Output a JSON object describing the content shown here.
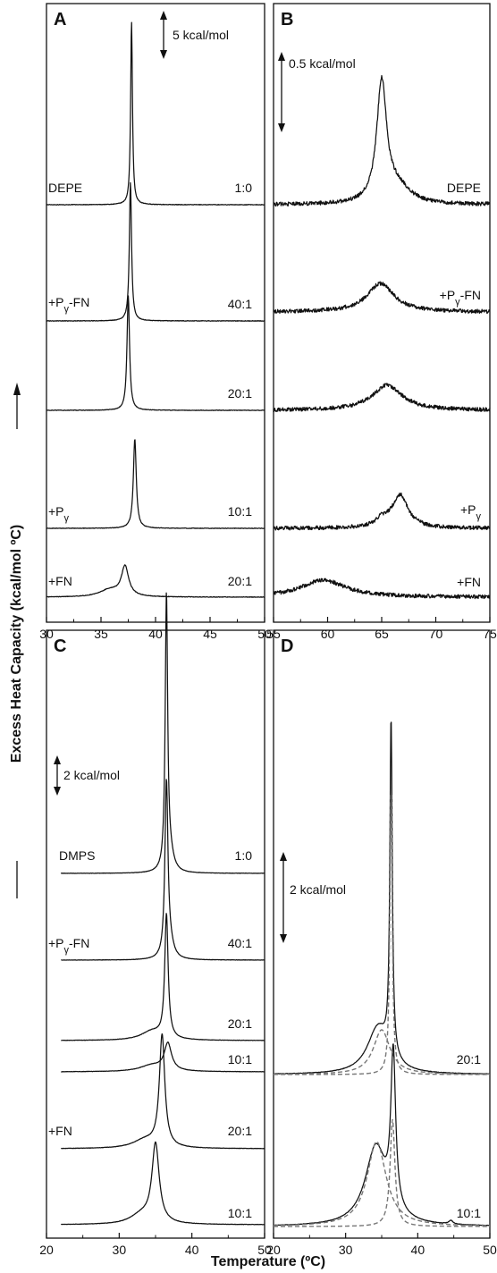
{
  "figure": {
    "ylabel": "Excess Heat Capacity (kcal/mol ºC)",
    "xlabel": "Temperature (ºC)"
  },
  "chart_data": [
    {
      "panel": "A",
      "type": "line",
      "xlim": [
        30,
        50
      ],
      "xticks": [
        "30",
        "35",
        "40",
        "45",
        "50"
      ],
      "scale_bar": "5 kcal/mol",
      "traces": [
        {
          "name": "DEPE",
          "ratio": "1:0",
          "peaks": [
            {
              "center": 37.8,
              "width": 0.1,
              "height": 205
            }
          ]
        },
        {
          "name": "+Pγ-FN",
          "ratio": "40:1",
          "peaks": [
            {
              "center": 37.7,
              "width": 0.12,
              "height": 155
            }
          ]
        },
        {
          "name": "",
          "ratio": "20:1",
          "peaks": [
            {
              "center": 37.5,
              "width": 0.14,
              "height": 128
            }
          ]
        },
        {
          "name": "+Pγ",
          "ratio": "10:1",
          "peaks": [
            {
              "center": 38.1,
              "width": 0.16,
              "height": 100
            }
          ]
        },
        {
          "name": "+FN",
          "ratio": "20:1",
          "peaks": [
            {
              "center": 37.2,
              "width": 0.4,
              "height": 33
            },
            {
              "center": 35.8,
              "width": 1.1,
              "height": 8
            }
          ]
        }
      ]
    },
    {
      "panel": "B",
      "type": "line",
      "xlim": [
        55,
        75
      ],
      "xticks": [
        "55",
        "60",
        "65",
        "70",
        "75"
      ],
      "scale_bar": "0.5 kcal/mol",
      "traces": [
        {
          "name": "DEPE",
          "ratio": "",
          "peaks": [
            {
              "center": 65.0,
              "width": 0.55,
              "height": 135
            },
            {
              "center": 66.5,
              "width": 1.4,
              "height": 18
            }
          ]
        },
        {
          "name": "+Pγ-FN",
          "ratio": "",
          "peaks": [
            {
              "center": 64.9,
              "width": 1.5,
              "height": 32
            }
          ]
        },
        {
          "name": "",
          "ratio": "",
          "peaks": [
            {
              "center": 65.5,
              "width": 1.7,
              "height": 28
            }
          ]
        },
        {
          "name": "+Pγ",
          "ratio": "",
          "peaks": [
            {
              "center": 66.7,
              "width": 0.9,
              "height": 37
            },
            {
              "center": 65.0,
              "width": 0.7,
              "height": 8
            }
          ]
        },
        {
          "name": "+FN",
          "ratio": "",
          "peaks": [
            {
              "center": 59.6,
              "width": 2.5,
              "height": 19
            }
          ]
        }
      ]
    },
    {
      "panel": "C",
      "type": "line",
      "xlim": [
        20,
        50
      ],
      "xticks": [
        "20",
        "30",
        "40",
        "50"
      ],
      "scale_bar": "2 kcal/mol",
      "traces": [
        {
          "name": "DMPS",
          "ratio": "1:0",
          "peaks": [
            {
              "center": 36.5,
              "width": 0.2,
              "height": 305
            },
            {
              "center": 37.0,
              "width": 0.6,
              "height": 18
            }
          ]
        },
        {
          "name": "+Pγ-FN",
          "ratio": "40:1",
          "peaks": [
            {
              "center": 36.5,
              "width": 0.25,
              "height": 195
            },
            {
              "center": 37.0,
              "width": 0.6,
              "height": 14
            }
          ]
        },
        {
          "name": "",
          "ratio": "20:1",
          "peaks": [
            {
              "center": 36.5,
              "width": 0.28,
              "height": 138
            },
            {
              "center": 34.5,
              "width": 1.8,
              "height": 10
            }
          ]
        },
        {
          "name": "",
          "ratio": "10:1",
          "peaks": [
            {
              "center": 36.7,
              "width": 0.6,
              "height": 30
            },
            {
              "center": 34.5,
              "width": 2.0,
              "height": 7
            }
          ]
        },
        {
          "name": "+FN",
          "ratio": "20:1",
          "peaks": [
            {
              "center": 35.9,
              "width": 0.45,
              "height": 125
            },
            {
              "center": 33.5,
              "width": 2.0,
              "height": 9
            }
          ]
        },
        {
          "name": "",
          "ratio": "10:1",
          "peaks": [
            {
              "center": 35.0,
              "width": 0.6,
              "height": 88
            },
            {
              "center": 33.0,
              "width": 1.8,
              "height": 10
            }
          ]
        }
      ]
    },
    {
      "panel": "D",
      "type": "line",
      "xlim": [
        20,
        50
      ],
      "xticks": [
        "20",
        "30",
        "40",
        "50"
      ],
      "scale_bar": "2 kcal/mol",
      "traces": [
        {
          "name": "",
          "ratio": "20:1",
          "peaks": [
            {
              "center": 36.3,
              "width": 0.2,
              "height": 375
            },
            {
              "center": 34.5,
              "width": 1.8,
              "height": 52
            }
          ],
          "components": [
            {
              "style": "dashed",
              "peaks": [
                {
                  "center": 36.3,
                  "width": 0.2,
                  "height": 320
                }
              ]
            },
            {
              "style": "dashed",
              "peaks": [
                {
                  "center": 35.0,
                  "width": 1.4,
                  "height": 50
                }
              ]
            }
          ]
        },
        {
          "name": "",
          "ratio": "10:1",
          "peaks": [
            {
              "center": 36.6,
              "width": 0.4,
              "height": 173
            },
            {
              "center": 34.2,
              "width": 1.8,
              "height": 88
            },
            {
              "center": 44.6,
              "width": 0.35,
              "height": 4
            }
          ],
          "components": [
            {
              "style": "dashed",
              "peaks": [
                {
                  "center": 36.5,
                  "width": 0.4,
                  "height": 120
                }
              ]
            },
            {
              "style": "dashed",
              "peaks": [
                {
                  "center": 34.3,
                  "width": 1.6,
                  "height": 95
                }
              ]
            }
          ]
        }
      ]
    }
  ]
}
